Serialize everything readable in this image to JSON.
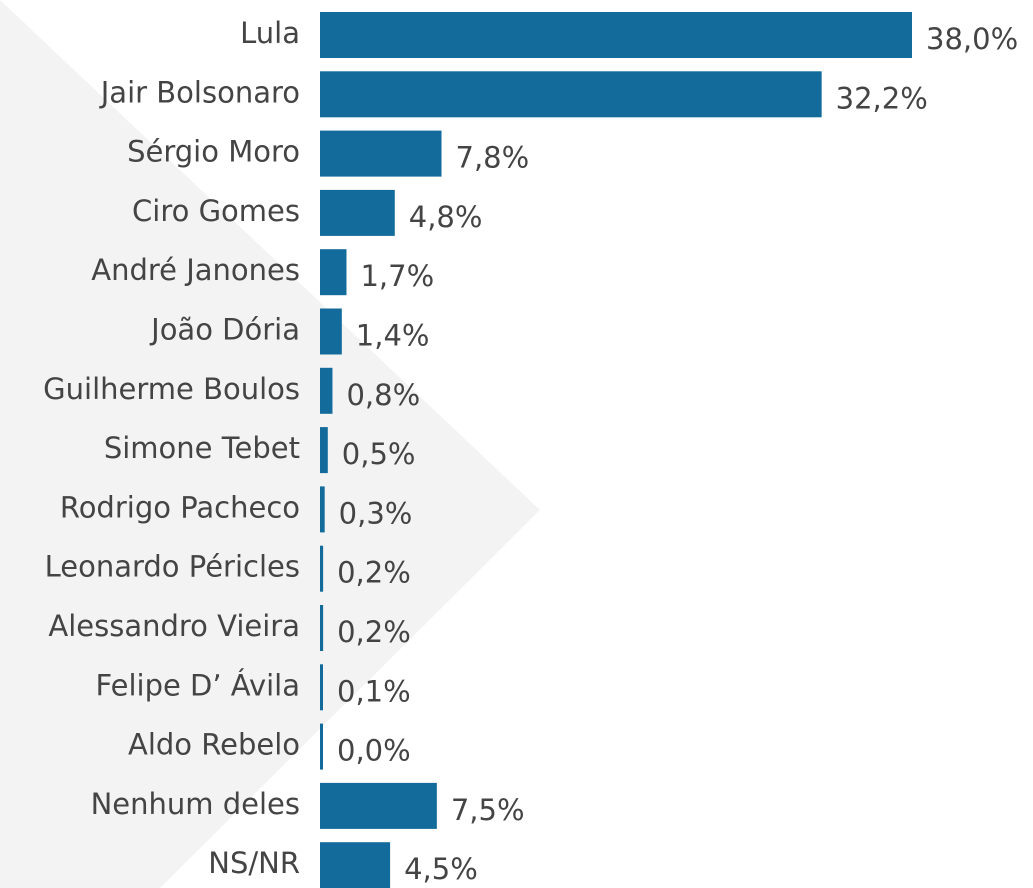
{
  "chart_data": {
    "type": "barh",
    "categories": [
      "Lula",
      "Jair Bolsonaro",
      "Sérgio Moro",
      "Ciro Gomes",
      "André Janones",
      "João Dória",
      "Guilherme Boulos",
      "Simone Tebet",
      "Rodrigo Pacheco",
      "Leonardo Péricles",
      "Alessandro Vieira",
      "Felipe D’ Ávila",
      "Aldo Rebelo",
      "Nenhum deles",
      "NS/NR"
    ],
    "values": [
      38.0,
      32.2,
      7.8,
      4.8,
      1.7,
      1.4,
      0.8,
      0.5,
      0.3,
      0.2,
      0.2,
      0.1,
      0.0,
      7.5,
      4.5
    ],
    "value_labels": [
      "38,0%",
      "32,2%",
      "7,8%",
      "4,8%",
      "1,7%",
      "1,4%",
      "0,8%",
      "0,5%",
      "0,3%",
      "0,2%",
      "0,2%",
      "0,1%",
      "0,0%",
      "7,5%",
      "4,5%"
    ],
    "color": "#136b9b"
  }
}
